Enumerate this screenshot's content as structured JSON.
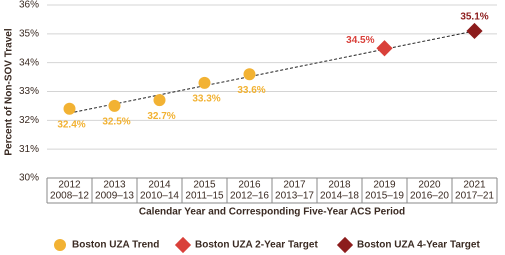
{
  "chart_data": {
    "type": "line",
    "y_label": "Percent of Non-SOV Travel",
    "x_label": "Calendar Year and Corresponding Five-Year ACS Period",
    "categories": [
      "2012",
      "2013",
      "2014",
      "2015",
      "2016",
      "2017",
      "2018",
      "2019",
      "2020",
      "2021"
    ],
    "periods": [
      "2008–12",
      "2009–13",
      "2010–14",
      "2011–15",
      "2012–16",
      "2013–17",
      "2014–18",
      "2015–19",
      "2016–20",
      "2017–21"
    ],
    "ylim": [
      30,
      36
    ],
    "yticks": [
      {
        "value": 30,
        "label": "30%"
      },
      {
        "value": 31,
        "label": "31%"
      },
      {
        "value": 32,
        "label": "32%"
      },
      {
        "value": 33,
        "label": "33%"
      },
      {
        "value": 34,
        "label": "34%"
      },
      {
        "value": 35,
        "label": "35%"
      },
      {
        "value": 36,
        "label": "36%"
      }
    ],
    "grid": true,
    "trend_line": {
      "start": 32.25,
      "end": 35.1,
      "color": "#222222"
    },
    "series": [
      {
        "name": "Boston UZA Trend",
        "color": "#f2b233",
        "marker": "circle",
        "values": [
          32.4,
          32.5,
          32.7,
          33.3,
          33.6,
          null,
          null,
          null,
          null,
          null
        ],
        "value_labels": [
          "32.4%",
          "32.5%",
          "32.7%",
          "33.3%",
          "33.6%",
          null,
          null,
          null,
          null,
          null
        ]
      },
      {
        "name": "Boston UZA 2-Year Target",
        "color": "#d9403a",
        "marker": "diamond",
        "values": [
          null,
          null,
          null,
          null,
          null,
          null,
          null,
          34.5,
          null,
          null
        ],
        "value_labels": [
          null,
          null,
          null,
          null,
          null,
          null,
          null,
          "34.5%",
          null,
          null
        ]
      },
      {
        "name": "Boston UZA 4-Year Target",
        "color": "#8c1c1c",
        "marker": "diamond",
        "values": [
          null,
          null,
          null,
          null,
          null,
          null,
          null,
          null,
          null,
          35.1
        ],
        "value_labels": [
          null,
          null,
          null,
          null,
          null,
          null,
          null,
          null,
          null,
          "35.1%"
        ]
      }
    ]
  }
}
